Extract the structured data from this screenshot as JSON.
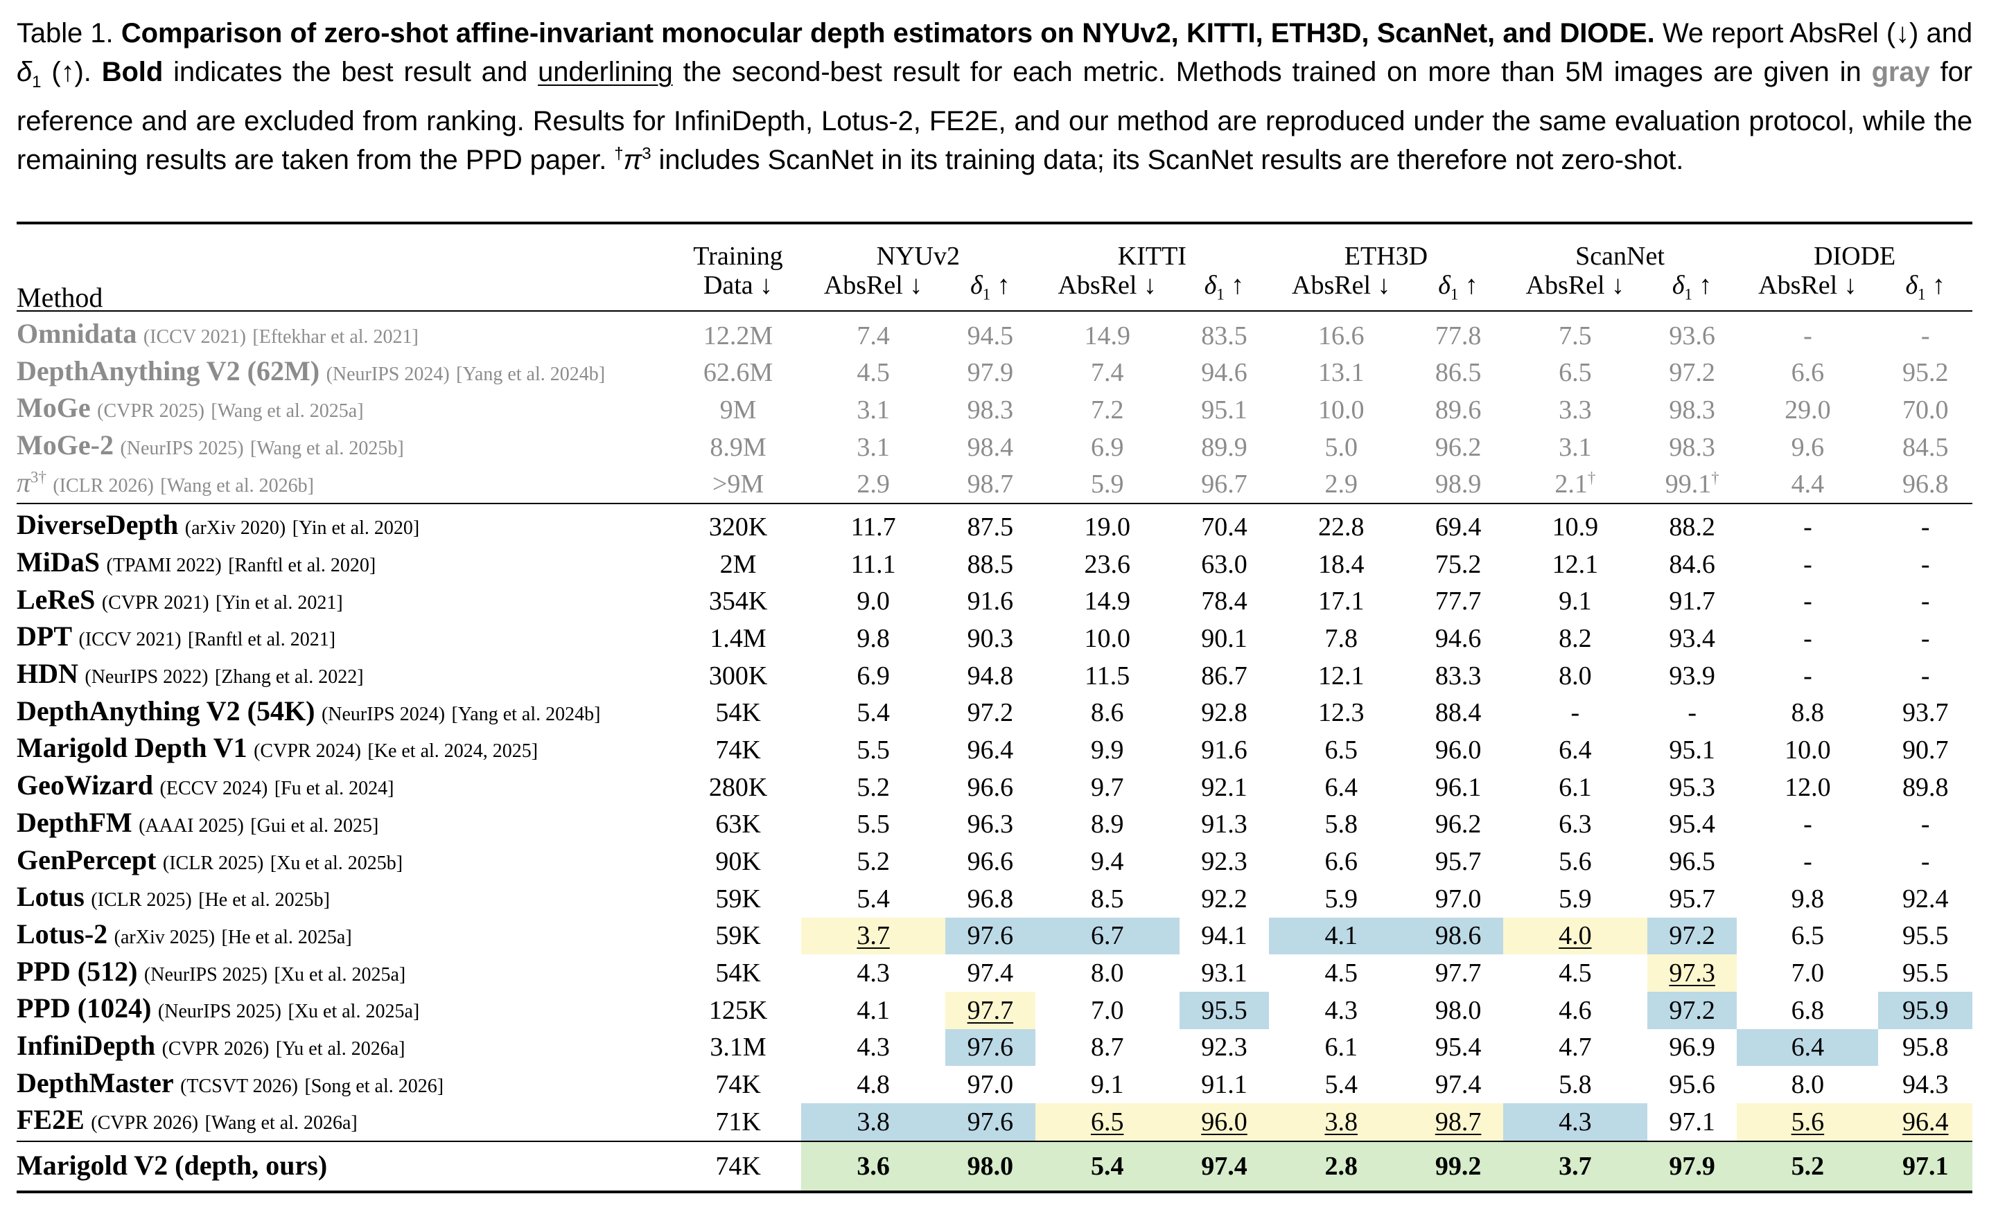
{
  "caption": {
    "label": "Table 1.",
    "title": "Comparison of zero-shot affine-invariant monocular depth estimators on NYUv2, KITTI, ETH3D, ScanNet, and DIODE.",
    "t1": " We report AbsRel (↓) and ",
    "delta": "δ",
    "delta_sub": "1",
    "t2": " (↑). ",
    "bold_word": "Bold",
    "t3": " indicates the best result and ",
    "underline_word": "underlining",
    "t4": " the second-best result for each metric. Methods trained on more than 5M images are given in ",
    "gray_word": "gray",
    "t5": " for reference and are excluded from ranking. Results for InfiniDepth, Lotus-2, FE2E, and our method are reproduced under the same evaluation protocol, while the remaining results are taken from the PPD paper. ",
    "dagger": "†",
    "pi": "π",
    "pi_sup": "3",
    "t6": " includes ScanNet in its training data; its ScanNet results are therefore not zero-shot."
  },
  "header": {
    "method": "Method",
    "training_line1": "Training",
    "training_line2": "Data ↓",
    "datasets": [
      "NYUv2",
      "KITTI",
      "ETH3D",
      "ScanNet",
      "DIODE"
    ],
    "absrel": "AbsRel ↓",
    "delta": "δ",
    "delta_sub": "1",
    "delta_arrow": " ↑"
  },
  "ref_rows": [
    {
      "name": "Omnidata",
      "venue": "(ICCV 2021)",
      "ref": "[Eftekhar et al. 2021]",
      "data": "12.2M",
      "v": [
        "7.4",
        "94.5",
        "14.9",
        "83.5",
        "16.6",
        "77.8",
        "7.5",
        "93.6",
        "-",
        "-"
      ]
    },
    {
      "name": "DepthAnything V2 (62M)",
      "venue": "(NeurIPS 2024)",
      "ref": "[Yang et al. 2024b]",
      "data": "62.6M",
      "v": [
        "4.5",
        "97.9",
        "7.4",
        "94.6",
        "13.1",
        "86.5",
        "6.5",
        "97.2",
        "6.6",
        "95.2"
      ]
    },
    {
      "name": "MoGe",
      "venue": "(CVPR 2025)",
      "ref": "[Wang et al. 2025a]",
      "data": "9M",
      "v": [
        "3.1",
        "98.3",
        "7.2",
        "95.1",
        "10.0",
        "89.6",
        "3.3",
        "98.3",
        "29.0",
        "70.0"
      ]
    },
    {
      "name": "MoGe-2",
      "venue": "(NeurIPS 2025)",
      "ref": "[Wang et al. 2025b]",
      "data": "8.9M",
      "v": [
        "3.1",
        "98.4",
        "6.9",
        "89.9",
        "5.0",
        "96.2",
        "3.1",
        "98.3",
        "9.6",
        "84.5"
      ]
    },
    {
      "name": "π",
      "name_sup": "3†",
      "venue": "(ICLR 2026)",
      "ref": "[Wang et al. 2026b]",
      "data": ">9M",
      "v": [
        "2.9",
        "98.7",
        "5.9",
        "96.7",
        "2.9",
        "98.9",
        "2.1†",
        "99.1†",
        "4.4",
        "96.8"
      ]
    }
  ],
  "rows": [
    {
      "name": "DiverseDepth",
      "venue": "(arXiv 2020)",
      "ref": "[Yin et al. 2020]",
      "data": "320K",
      "v": [
        "11.7",
        "87.5",
        "19.0",
        "70.4",
        "22.8",
        "69.4",
        "10.9",
        "88.2",
        "-",
        "-"
      ]
    },
    {
      "name": "MiDaS",
      "venue": "(TPAMI 2022)",
      "ref": "[Ranftl et al. 2020]",
      "data": "2M",
      "v": [
        "11.1",
        "88.5",
        "23.6",
        "63.0",
        "18.4",
        "75.2",
        "12.1",
        "84.6",
        "-",
        "-"
      ]
    },
    {
      "name": "LeReS",
      "venue": "(CVPR 2021)",
      "ref": "[Yin et al. 2021]",
      "data": "354K",
      "v": [
        "9.0",
        "91.6",
        "14.9",
        "78.4",
        "17.1",
        "77.7",
        "9.1",
        "91.7",
        "-",
        "-"
      ]
    },
    {
      "name": "DPT",
      "venue": "(ICCV 2021)",
      "ref": "[Ranftl et al. 2021]",
      "data": "1.4M",
      "v": [
        "9.8",
        "90.3",
        "10.0",
        "90.1",
        "7.8",
        "94.6",
        "8.2",
        "93.4",
        "-",
        "-"
      ]
    },
    {
      "name": "HDN",
      "venue": "(NeurIPS 2022)",
      "ref": "[Zhang et al. 2022]",
      "data": "300K",
      "v": [
        "6.9",
        "94.8",
        "11.5",
        "86.7",
        "12.1",
        "83.3",
        "8.0",
        "93.9",
        "-",
        "-"
      ]
    },
    {
      "name": "DepthAnything V2 (54K)",
      "venue": "(NeurIPS 2024)",
      "ref": "[Yang et al. 2024b]",
      "data": "54K",
      "v": [
        "5.4",
        "97.2",
        "8.6",
        "92.8",
        "12.3",
        "88.4",
        "-",
        "-",
        "8.8",
        "93.7"
      ]
    },
    {
      "name": "Marigold Depth V1",
      "venue": "(CVPR 2024)",
      "ref": "[Ke et al. 2024, 2025]",
      "data": "74K",
      "v": [
        "5.5",
        "96.4",
        "9.9",
        "91.6",
        "6.5",
        "96.0",
        "6.4",
        "95.1",
        "10.0",
        "90.7"
      ]
    },
    {
      "name": "GeoWizard",
      "venue": "(ECCV 2024)",
      "ref": "[Fu et al. 2024]",
      "data": "280K",
      "v": [
        "5.2",
        "96.6",
        "9.7",
        "92.1",
        "6.4",
        "96.1",
        "6.1",
        "95.3",
        "12.0",
        "89.8"
      ]
    },
    {
      "name": "DepthFM",
      "venue": "(AAAI 2025)",
      "ref": "[Gui et al. 2025]",
      "data": "63K",
      "v": [
        "5.5",
        "96.3",
        "8.9",
        "91.3",
        "5.8",
        "96.2",
        "6.3",
        "95.4",
        "-",
        "-"
      ]
    },
    {
      "name": "GenPercept",
      "venue": "(ICLR 2025)",
      "ref": "[Xu et al. 2025b]",
      "data": "90K",
      "v": [
        "5.2",
        "96.6",
        "9.4",
        "92.3",
        "6.6",
        "95.7",
        "5.6",
        "96.5",
        "-",
        "-"
      ]
    },
    {
      "name": "Lotus",
      "venue": "(ICLR 2025)",
      "ref": "[He et al. 2025b]",
      "data": "59K",
      "v": [
        "5.4",
        "96.8",
        "8.5",
        "92.2",
        "5.9",
        "97.0",
        "5.9",
        "95.7",
        "9.8",
        "92.4"
      ]
    },
    {
      "name": "Lotus-2",
      "venue": "(arXiv 2025)",
      "ref": "[He et al. 2025a]",
      "data": "59K",
      "v": [
        "3.7",
        "97.6",
        "6.7",
        "94.1",
        "4.1",
        "98.6",
        "4.0",
        "97.2",
        "6.5",
        "95.5"
      ],
      "hl": [
        "y",
        "b",
        "b",
        "",
        "b",
        "b",
        "y",
        "b",
        "",
        ""
      ],
      "ul": [
        1,
        0,
        0,
        0,
        0,
        0,
        1,
        0,
        0,
        0
      ]
    },
    {
      "name": "PPD (512)",
      "venue": "(NeurIPS 2025)",
      "ref": "[Xu et al. 2025a]",
      "data": "54K",
      "v": [
        "4.3",
        "97.4",
        "8.0",
        "93.1",
        "4.5",
        "97.7",
        "4.5",
        "97.3",
        "7.0",
        "95.5"
      ],
      "hl": [
        "",
        "",
        "",
        "",
        "",
        "",
        "",
        "y",
        "",
        ""
      ],
      "ul": [
        0,
        0,
        0,
        0,
        0,
        0,
        0,
        1,
        0,
        0
      ]
    },
    {
      "name": "PPD (1024)",
      "venue": "(NeurIPS 2025)",
      "ref": "[Xu et al. 2025a]",
      "data": "125K",
      "v": [
        "4.1",
        "97.7",
        "7.0",
        "95.5",
        "4.3",
        "98.0",
        "4.6",
        "97.2",
        "6.8",
        "95.9"
      ],
      "hl": [
        "",
        "y",
        "",
        "b",
        "",
        "",
        "",
        "b",
        "",
        "b"
      ],
      "ul": [
        0,
        1,
        0,
        0,
        0,
        0,
        0,
        0,
        0,
        0
      ]
    },
    {
      "name": "InfiniDepth",
      "venue": "(CVPR 2026)",
      "ref": "[Yu et al. 2026a]",
      "data": "3.1M",
      "v": [
        "4.3",
        "97.6",
        "8.7",
        "92.3",
        "6.1",
        "95.4",
        "4.7",
        "96.9",
        "6.4",
        "95.8"
      ],
      "hl": [
        "",
        "b",
        "",
        "",
        "",
        "",
        "",
        "",
        "b",
        ""
      ],
      "ul": [
        0,
        0,
        0,
        0,
        0,
        0,
        0,
        0,
        0,
        0
      ]
    },
    {
      "name": "DepthMaster",
      "venue": "(TCSVT 2026)",
      "ref": "[Song et al. 2026]",
      "data": "74K",
      "v": [
        "4.8",
        "97.0",
        "9.1",
        "91.1",
        "5.4",
        "97.4",
        "5.8",
        "95.6",
        "8.0",
        "94.3"
      ]
    },
    {
      "name": "FE2E",
      "venue": "(CVPR 2026)",
      "ref": "[Wang et al. 2026a]",
      "data": "71K",
      "v": [
        "3.8",
        "97.6",
        "6.5",
        "96.0",
        "3.8",
        "98.7",
        "4.3",
        "97.1",
        "5.6",
        "96.4"
      ],
      "hl": [
        "b",
        "b",
        "y",
        "y",
        "y",
        "y",
        "b",
        "",
        "y",
        "y"
      ],
      "ul": [
        0,
        0,
        1,
        1,
        1,
        1,
        0,
        0,
        1,
        1
      ]
    }
  ],
  "ours": {
    "name": "Marigold V2 (depth, ours)",
    "data": "74K",
    "v": [
      "3.6",
      "98.0",
      "5.4",
      "97.4",
      "2.8",
      "99.2",
      "3.7",
      "97.9",
      "5.2",
      "97.1"
    ]
  },
  "colors": {
    "second_best_fill": "#fdf7cf",
    "third_fill": "#bcd9e6",
    "ours_fill": "#d6ecca",
    "reference_gray": "#8c8c8c"
  }
}
